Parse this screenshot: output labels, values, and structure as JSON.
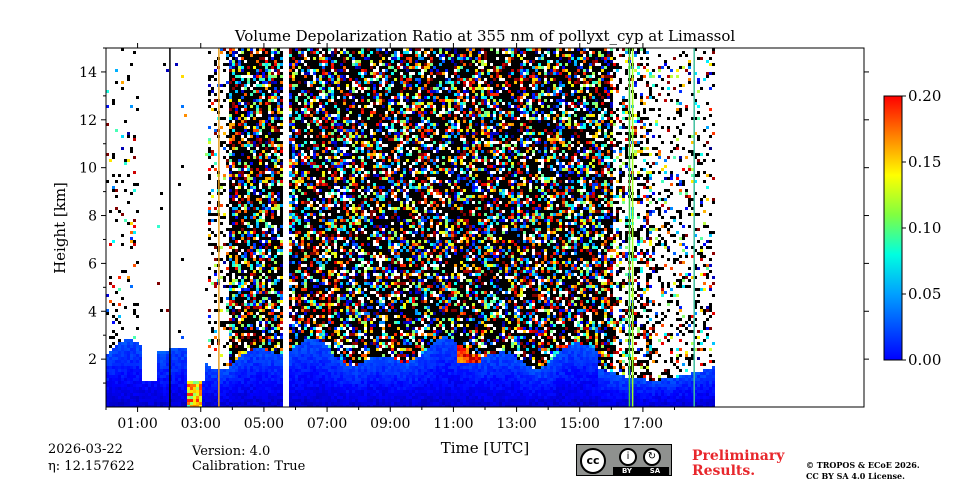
{
  "chart_data": {
    "type": "heatmap",
    "title": "Volume Depolarization Ratio at 355 nm of pollyxt_cyp at Limassol",
    "xlabel": "Time [UTC]",
    "ylabel": "Height [km]",
    "xlim_hours": [
      0,
      24
    ],
    "ylim_km": [
      0,
      15
    ],
    "x_ticks": [
      {
        "hour": 1,
        "label": "01:00"
      },
      {
        "hour": 3,
        "label": "03:00"
      },
      {
        "hour": 5,
        "label": "05:00"
      },
      {
        "hour": 7,
        "label": "07:00"
      },
      {
        "hour": 9,
        "label": "09:00"
      },
      {
        "hour": 11,
        "label": "11:00"
      },
      {
        "hour": 13,
        "label": "13:00"
      },
      {
        "hour": 15,
        "label": "15:00"
      },
      {
        "hour": 17,
        "label": "17:00"
      }
    ],
    "y_ticks": [
      {
        "value": 2,
        "label": "2"
      },
      {
        "value": 4,
        "label": "4"
      },
      {
        "value": 6,
        "label": "6"
      },
      {
        "value": 8,
        "label": "8"
      },
      {
        "value": 10,
        "label": "10"
      },
      {
        "value": 12,
        "label": "12"
      },
      {
        "value": 14,
        "label": "14"
      }
    ],
    "colorbar": {
      "min": 0.0,
      "max": 0.2,
      "colormap": "jet",
      "ticks": [
        {
          "value": 0.0,
          "label": "0.00"
        },
        {
          "value": 0.05,
          "label": "0.05"
        },
        {
          "value": 0.1,
          "label": "0.10"
        },
        {
          "value": 0.15,
          "label": "0.15"
        },
        {
          "value": 0.2,
          "label": "0.20"
        }
      ]
    },
    "data_gap_hours": [
      5.55,
      5.7
    ],
    "features": [
      {
        "name": "boundary layer",
        "hours": [
          0,
          19.2
        ],
        "height_km": [
          0,
          2.5
        ],
        "typical_value": 0.02
      },
      {
        "name": "cloud depolarization patch",
        "hours": [
          11.1,
          11.8
        ],
        "height_km": [
          2.0,
          3.0
        ],
        "typical_value": 0.16
      },
      {
        "name": "near-surface enhancement",
        "hours": [
          2.5,
          3.0
        ],
        "height_km": [
          0,
          1.5
        ],
        "typical_value": 0.13
      },
      {
        "name": "high noise region",
        "hours": [
          4.0,
          16.2
        ],
        "height_km": [
          2.5,
          15
        ],
        "typical_value": 0.08
      }
    ]
  },
  "meta": {
    "date": "2026-03-22",
    "eta": "η: 12.157622",
    "version": "Version: 4.0",
    "calibration": "Calibration: True",
    "preliminary_line1": "Preliminary",
    "preliminary_line2": "Results.",
    "copyright_line1": "© TROPOS & ECoE 2026.",
    "copyright_line2": "CC BY SA 4.0 License.",
    "license_badge": {
      "cc": "cc",
      "by": "BY",
      "sa": "SA"
    }
  }
}
